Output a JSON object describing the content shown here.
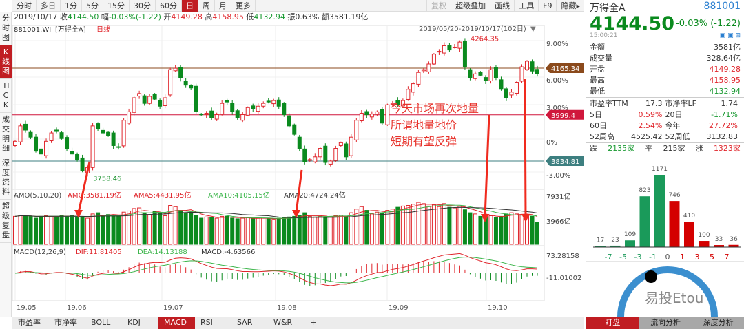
{
  "toolbar": {
    "tabs": [
      "分时",
      "多日",
      "1分",
      "5分",
      "15分",
      "30分",
      "60分",
      "日",
      "周",
      "月",
      "更多"
    ],
    "active": "日",
    "tools": [
      "复权",
      "超级叠加",
      "画线",
      "工具",
      "F9",
      "隐藏▸"
    ]
  },
  "info": {
    "date": "2019/10/17",
    "close_label": "收",
    "close": "4144.50",
    "chg_label": "幅",
    "chg": "-0.03%(-1.22)",
    "open_label": "开",
    "open": "4149.28",
    "high_label": "高",
    "high": "4158.95",
    "low_label": "低",
    "low": "4132.94",
    "amp_label": "振",
    "amp": "0.63%",
    "amt_label": "额",
    "amt": "3581.19亿"
  },
  "chart_title": {
    "code": "881001.WI",
    "name": "[万得全A]",
    "period": "日线"
  },
  "range_label": "2019/05/20-2019/10/17(102日)",
  "left_tabs": [
    "分时图",
    "K线图",
    "TICK",
    "成交明细",
    "深度资料",
    "超级复盘"
  ],
  "left_active": "K线图",
  "colors": {
    "up": "#e0262c",
    "down": "#0a8a1e",
    "accent": "#c01d22",
    "ref_brown": "#8b4a1c",
    "ref_red": "#d0173c",
    "ref_teal": "#3d7f80"
  },
  "chart_data": {
    "type": "candlestick",
    "ylim": [
      3720,
      4300
    ],
    "right_axis_ticks": [
      "9.00%",
      "6.00%",
      "3.00%",
      "0%",
      "-3.00%"
    ],
    "ref_lines": [
      {
        "label": "4165.34",
        "value": 4165.34
      },
      {
        "label": "3999.4",
        "value": 3999.4
      },
      {
        "label": "3834.81",
        "value": 3834.81
      }
    ],
    "high_label": "4264.35",
    "low_label": "3758.46",
    "x_labels": [
      "19.05",
      "19.06",
      "19.07",
      "19.08",
      "19.09",
      "19.10"
    ],
    "closes": [
      3905,
      3960,
      3945,
      3920,
      3870,
      3860,
      3905,
      3935,
      3940,
      3915,
      3880,
      3860,
      3840,
      3800,
      3812,
      3960,
      3950,
      3935,
      3925,
      3890,
      3885,
      3980,
      4010,
      4060,
      4075,
      4040,
      4065,
      4055,
      4030,
      4060,
      4160,
      4165,
      4130,
      4105,
      4095,
      4010,
      4000,
      4005,
      3990,
      4000,
      4040,
      4045,
      4010,
      3990,
      4000,
      4025,
      4020,
      4030,
      4040,
      4045,
      4050,
      4030,
      4000,
      3960,
      3930,
      3880,
      3832,
      3840,
      3850,
      3880,
      3830,
      3835,
      3880,
      3900,
      3850,
      3920,
      3980,
      4005,
      4000,
      4002,
      4010,
      3970,
      4035,
      4040,
      4035,
      4050,
      4090,
      4110,
      4150,
      4160,
      4180,
      4215,
      4225,
      4245,
      4230,
      4240,
      4258,
      4170,
      4130,
      4145,
      4140,
      4120,
      4160,
      4130,
      4090,
      4060,
      4080,
      4115,
      4170,
      4190,
      4155,
      4144.5
    ],
    "volume": {
      "label": "AMO(5,10,20)",
      "amo": "AMO:3581.19亿",
      "ama5": "AMA5:4431.95亿",
      "ama10": "AMA10:4105.15亿",
      "ama20": "AMA20:4724.24亿",
      "ticks": [
        "7931亿",
        "3966亿"
      ],
      "values": [
        4600,
        4800,
        4700,
        4600,
        4300,
        4600,
        4700,
        4600,
        4600,
        4700,
        4600,
        4700,
        4500,
        4400,
        4300,
        5000,
        5200,
        4700,
        4900,
        4800,
        4600,
        5300,
        5500,
        5900,
        6000,
        5200,
        4900,
        5400,
        5100,
        4700,
        6400,
        6200,
        5600,
        5100,
        5200,
        4700,
        4300,
        4500,
        4400,
        4300,
        4600,
        4600,
        4300,
        4200,
        4300,
        4400,
        4200,
        4300,
        4300,
        4200,
        4100,
        4300,
        4400,
        4500,
        4600,
        4700,
        5200,
        4600,
        4500,
        4600,
        4400,
        4500,
        4700,
        4800,
        4600,
        5200,
        5800,
        6200,
        5600,
        5000,
        5300,
        5100,
        5600,
        5800,
        6100,
        6300,
        6400,
        6600,
        6900,
        6700,
        6300,
        6500,
        6200,
        6700,
        6100,
        6000,
        6300,
        5700,
        5200,
        5000,
        4600,
        4500,
        4700,
        4400,
        4600,
        5000,
        5200,
        5000,
        4900,
        4800,
        4600,
        3581
      ]
    },
    "macd": {
      "label": "MACD(12,26,9)",
      "dif": "DIF:11.81405",
      "dea": "DEA:14.13188",
      "macd": "MACD:-4.63566",
      "ticks": [
        "73.28158",
        "-11.01002"
      ]
    }
  },
  "annotation": [
    "今天市场再次地量",
    "所谓地量地价",
    "短期有望反弹"
  ],
  "bottom_tabs": [
    "市盈率",
    "市净率",
    "BOLL",
    "KDJ",
    "MACD",
    "RSI",
    "SAR",
    "W&R",
    "+"
  ],
  "bottom_active": "MACD",
  "quote": {
    "name": "万得全A",
    "code": "881001",
    "price": "4144.50",
    "change": "-0.03% (-1.22)",
    "time": "15:00:21",
    "stats": [
      {
        "k": "金额",
        "v": "3581亿",
        "c": ""
      },
      {
        "k": "成交量",
        "v": "328.64亿",
        "c": ""
      },
      {
        "k": "开盘",
        "v": "4149.28",
        "c": "r"
      },
      {
        "k": "最高",
        "v": "4158.95",
        "c": "r"
      },
      {
        "k": "最低",
        "v": "4132.94",
        "c": "g"
      }
    ],
    "ratios": [
      [
        {
          "k": "市盈率TTM",
          "v": "17.3",
          "c": ""
        },
        {
          "k": "市净率LF",
          "v": "1.74",
          "c": ""
        }
      ],
      [
        {
          "k": "5日",
          "v": "0.59%",
          "c": "r"
        },
        {
          "k": "20日",
          "v": "-1.71%",
          "c": "g"
        }
      ],
      [
        {
          "k": "60日",
          "v": "2.54%",
          "c": "r"
        },
        {
          "k": "今年",
          "v": "27.72%",
          "c": "r"
        }
      ],
      [
        {
          "k": "52周高",
          "v": "4525.42",
          "c": ""
        },
        {
          "k": "52周低",
          "v": "3132.83",
          "c": ""
        }
      ]
    ],
    "breadth": {
      "down_label": "跌",
      "down": "2135家",
      "flat_label": "平",
      "flat": "215家",
      "up_label": "涨",
      "up": "1323家"
    },
    "distribution": {
      "counts": [
        17,
        23,
        109,
        823,
        1171,
        746,
        410,
        100,
        33,
        36
      ],
      "axis": [
        "-7",
        "-5",
        "-3",
        "-1",
        "0",
        "1",
        "3",
        "5",
        "7"
      ]
    },
    "watermark": "易投Etou",
    "tabs": [
      "盯盘",
      "流向分析",
      "深度分析"
    ],
    "active_tab": "盯盘"
  }
}
